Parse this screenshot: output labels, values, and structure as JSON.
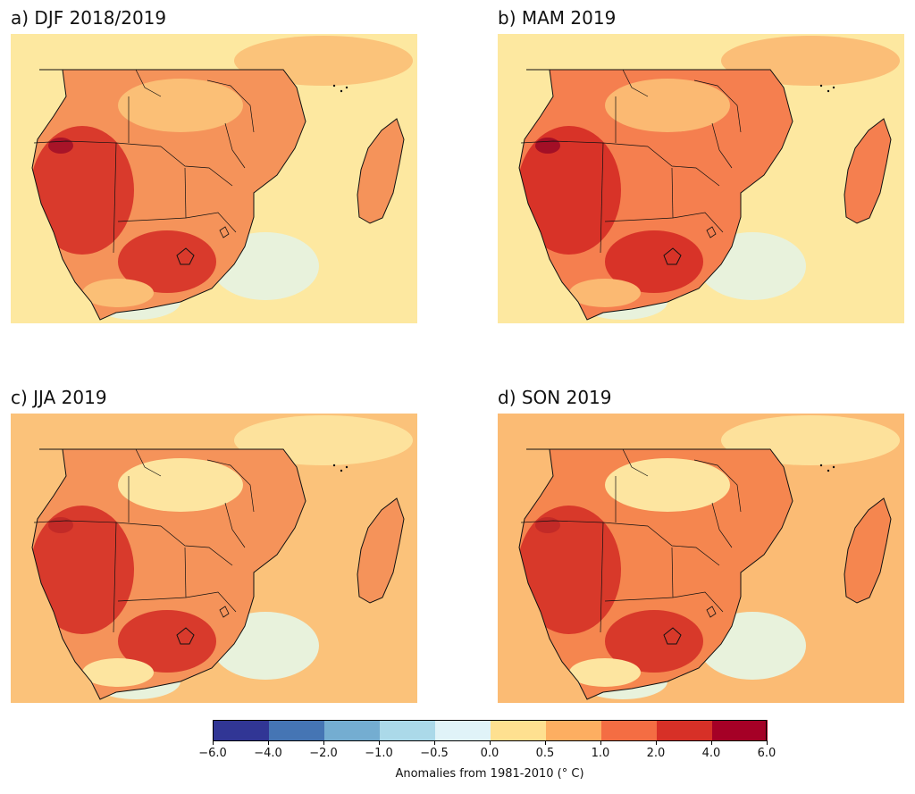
{
  "panels": [
    {
      "title": "a) DJF 2018/2019",
      "palette": {
        "ocean": "#fde8a0",
        "land": "#f5935a",
        "hot": "#d93a2c",
        "hottest": "#a81428",
        "cool": "#e8f2dc",
        "cold": "#a9d2e6",
        "warm": "#fbbf76"
      }
    },
    {
      "title": "b) MAM 2019",
      "palette": {
        "ocean": "#fde8a0",
        "land": "#f57f4f",
        "hot": "#d83328",
        "hottest": "#a30f26",
        "cool": "#e8f2dc",
        "cold": "#9ccce6",
        "warm": "#fbb972"
      }
    },
    {
      "title": "c) JJA 2019",
      "palette": {
        "ocean": "#fbc27a",
        "land": "#f5935a",
        "hot": "#d83a2c",
        "hottest": "#c22a27",
        "cool": "#e8f2dc",
        "cold": "#bfe0ea",
        "warm": "#fde5a0"
      }
    },
    {
      "title": "d) SON 2019",
      "palette": {
        "ocean": "#fbbb74",
        "land": "#f5864f",
        "hot": "#d8392a",
        "hottest": "#c22a27",
        "cool": "#e8f2dc",
        "cold": "#bfe0ea",
        "warm": "#fde5a0"
      }
    }
  ],
  "colorbar": {
    "colors": [
      "#313695",
      "#4575b4",
      "#74add1",
      "#abd9e9",
      "#e0f3f8",
      "#fee090",
      "#fdae61",
      "#f46d43",
      "#d73027",
      "#a50026"
    ],
    "ticks": [
      "−6.0",
      "−4.0",
      "−2.0",
      "−1.0",
      "−0.5",
      "0.0",
      "0.5",
      "1.0",
      "2.0",
      "4.0",
      "6.0"
    ],
    "label": "Anomalies from 1981-2010 (° C)"
  }
}
